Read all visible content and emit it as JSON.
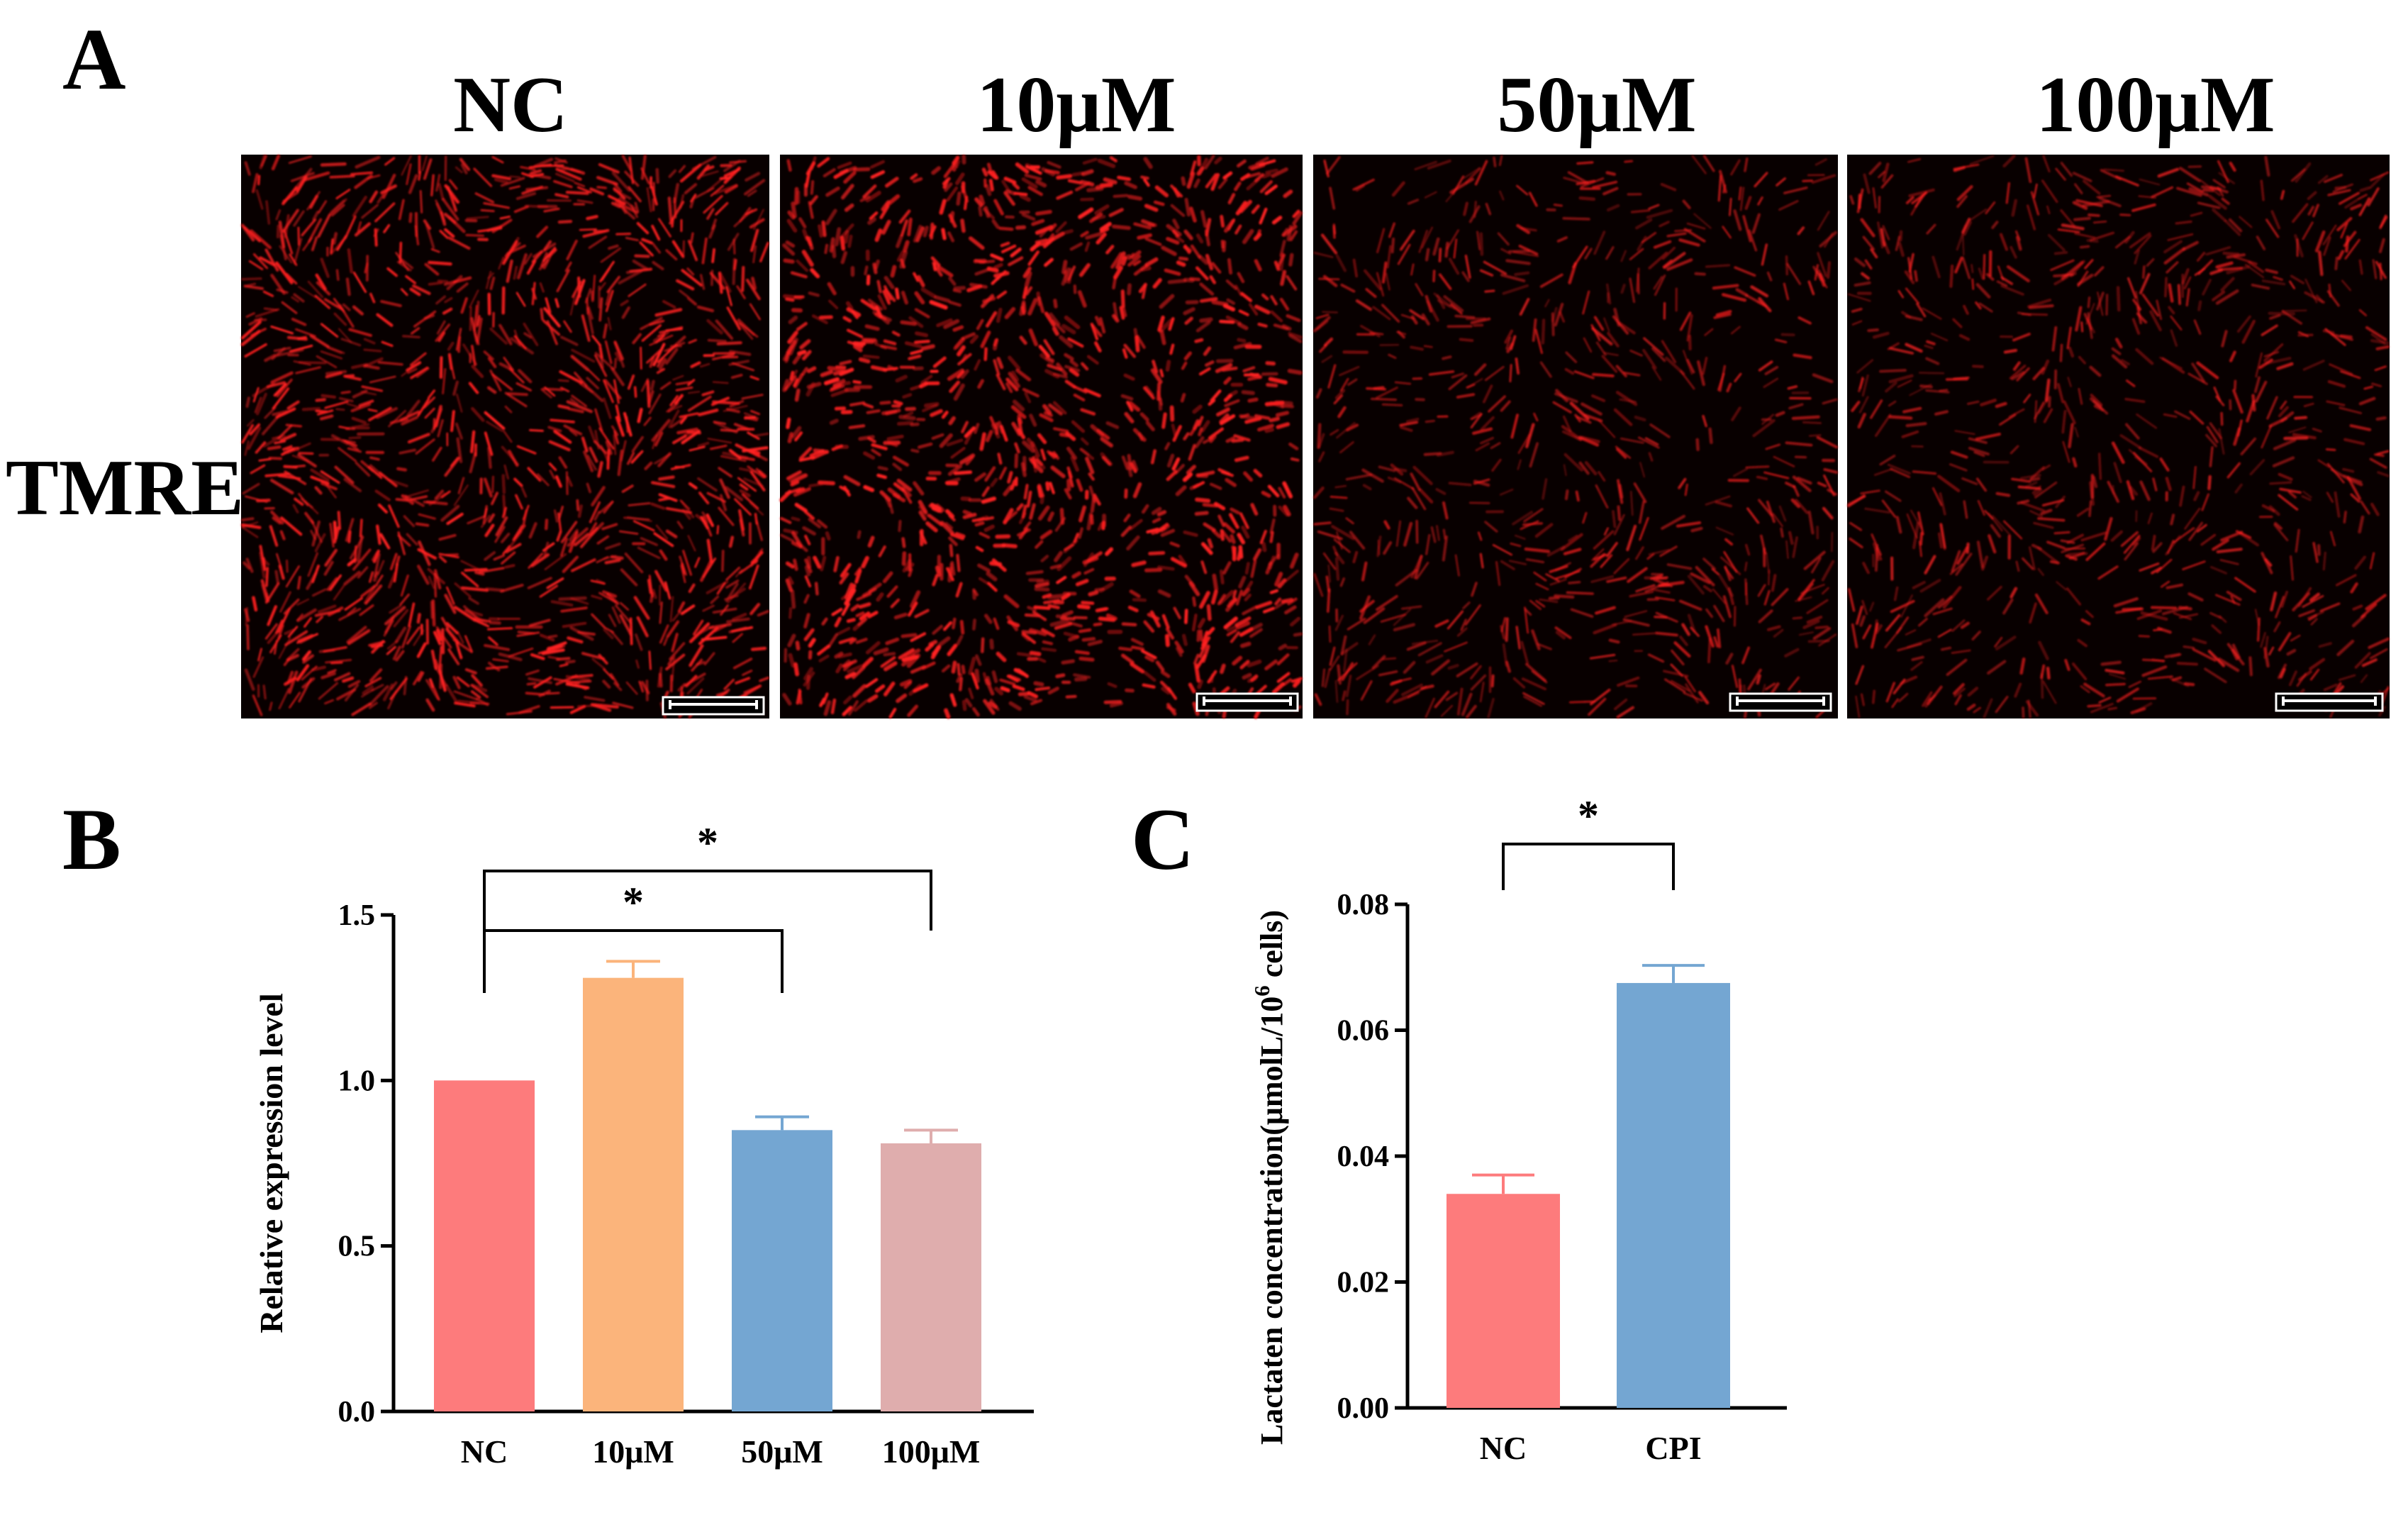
{
  "panel_a": {
    "letter": "A",
    "row_label": "TMRE",
    "columns": [
      "NC",
      "10μM",
      "50μM",
      "100μM"
    ],
    "stain_color": "#ff2020",
    "density": [
      1.0,
      1.0,
      0.55,
      0.6
    ]
  },
  "chart_data": [
    {
      "panel": "B",
      "type": "bar",
      "categories": [
        "NC",
        "10μM",
        "50μM",
        "100μM"
      ],
      "values": [
        1.0,
        1.31,
        0.85,
        0.81
      ],
      "errors": [
        0.0,
        0.05,
        0.04,
        0.04
      ],
      "colors": [
        "#fd7b7c",
        "#fbb47b",
        "#74a6d2",
        "#dfadad"
      ],
      "ylabel": "Relative expression level",
      "xlabel": "",
      "ylim": [
        0,
        1.5
      ],
      "yticks": [
        "0.0",
        "0.5",
        "1.0",
        "1.5"
      ],
      "ytick_values": [
        0,
        0.5,
        1.0,
        1.5
      ],
      "significance": [
        {
          "from": "NC",
          "to": "50μM",
          "label": "*"
        },
        {
          "from": "NC",
          "to": "100μM",
          "label": "*"
        }
      ]
    },
    {
      "panel": "C",
      "type": "bar",
      "categories": [
        "NC",
        "CPI"
      ],
      "values": [
        0.034,
        0.0675
      ],
      "errors": [
        0.003,
        0.0028
      ],
      "colors": [
        "#fd7b7c",
        "#74a6d2"
      ],
      "ylabel": "Lactaten concentration(μmolL/10",
      "ylabel_sup": "6",
      "ylabel_tail": " cells)",
      "xlabel": "",
      "ylim": [
        0,
        0.08
      ],
      "yticks": [
        "0.00",
        "0.02",
        "0.04",
        "0.06",
        "0.08"
      ],
      "ytick_values": [
        0,
        0.02,
        0.04,
        0.06,
        0.08
      ],
      "significance": [
        {
          "from": "NC",
          "to": "CPI",
          "label": "*"
        }
      ]
    }
  ]
}
